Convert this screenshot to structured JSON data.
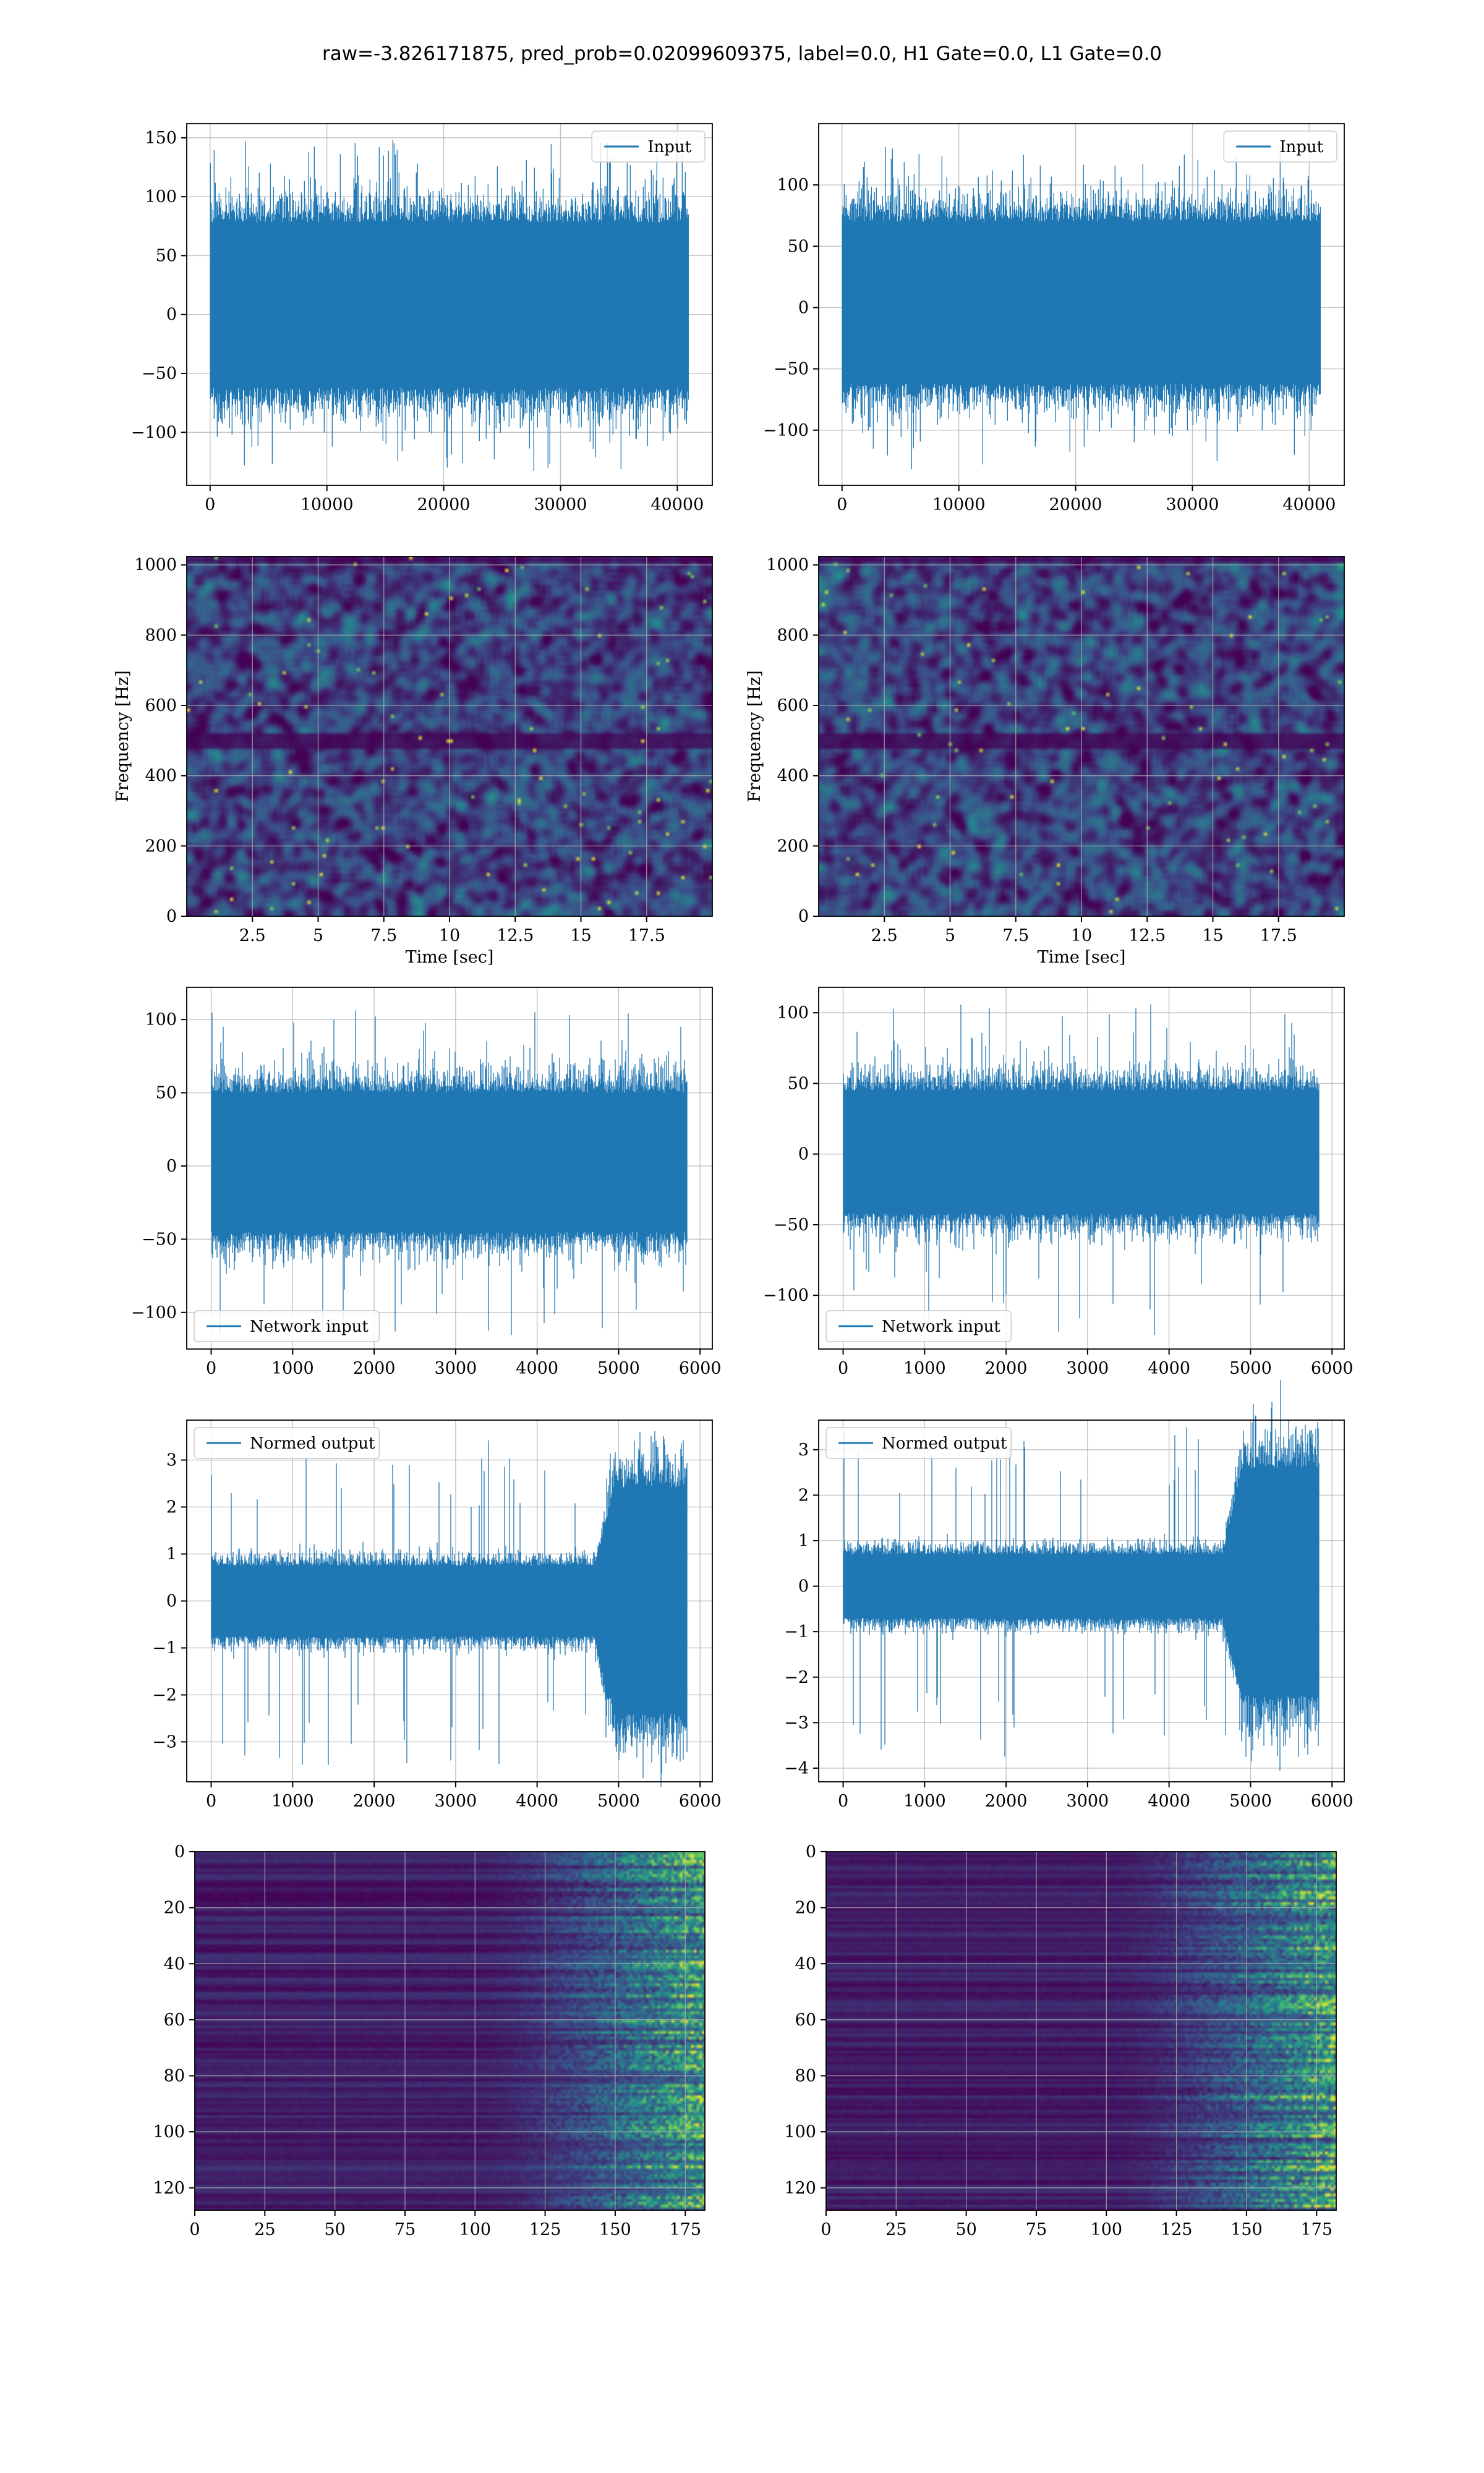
{
  "figure": {
    "suptitle": "raw=-3.826171875, pred_prob=0.02099609375, label=0.0, H1 Gate=0.0, L1 Gate=0.0"
  },
  "colors": {
    "line": "#1f77b4",
    "grid": "#b0b0b0",
    "spectrogram_background": "#440154",
    "heatmap_bright": "#fde725",
    "heatmap_mid": "#21918c"
  },
  "chart_data": [
    {
      "id": "h1-input",
      "type": "line",
      "title": "",
      "xlabel": "",
      "ylabel": "",
      "series": [
        {
          "name": "Input",
          "n_points": 40960,
          "x_range": [
            0,
            40960
          ],
          "y_band": [
            -62,
            78
          ],
          "envelope_max": 152,
          "envelope_min": -133
        }
      ],
      "xlim": [
        -2000,
        43000
      ],
      "ylim": [
        -145,
        162
      ],
      "xticks": [
        0,
        10000,
        20000,
        30000,
        40000
      ],
      "yticks": [
        -100,
        -50,
        0,
        50,
        100,
        150
      ],
      "legend": "upper right",
      "grid": true
    },
    {
      "id": "l1-input",
      "type": "line",
      "title": "",
      "xlabel": "",
      "ylabel": "",
      "series": [
        {
          "name": "Input",
          "n_points": 40960,
          "x_range": [
            0,
            40960
          ],
          "y_band": [
            -62,
            70
          ],
          "envelope_max": 132,
          "envelope_min": -132
        }
      ],
      "xlim": [
        -2000,
        43000
      ],
      "ylim": [
        -145,
        150
      ],
      "xticks": [
        0,
        10000,
        20000,
        30000,
        40000
      ],
      "yticks": [
        -100,
        -50,
        0,
        50,
        100
      ],
      "legend": "upper right",
      "grid": true
    },
    {
      "id": "h1-spectrogram",
      "type": "heatmap",
      "title": "",
      "xlabel": "Time [sec]",
      "ylabel": "Frequency [Hz]",
      "xlim": [
        0,
        20
      ],
      "ylim": [
        0,
        1024
      ],
      "xticks": [
        2.5,
        5.0,
        7.5,
        10.0,
        12.5,
        15.0,
        17.5
      ],
      "yticks": [
        0,
        200,
        400,
        600,
        800,
        1000
      ],
      "dark_band_hz": 500,
      "grid": true
    },
    {
      "id": "l1-spectrogram",
      "type": "heatmap",
      "title": "",
      "xlabel": "Time [sec]",
      "ylabel": "Frequency [Hz]",
      "xlim": [
        0,
        20
      ],
      "ylim": [
        0,
        1024
      ],
      "xticks": [
        2.5,
        5.0,
        7.5,
        10.0,
        12.5,
        15.0,
        17.5
      ],
      "yticks": [
        0,
        200,
        400,
        600,
        800,
        1000
      ],
      "dark_band_hz": 500,
      "grid": true
    },
    {
      "id": "h1-network-input",
      "type": "line",
      "title": "",
      "xlabel": "",
      "ylabel": "",
      "series": [
        {
          "name": "Network input",
          "n_points": 5840,
          "x_range": [
            0,
            5840
          ],
          "y_band": [
            -45,
            50
          ],
          "envelope_max": 107,
          "envelope_min": -118
        }
      ],
      "xlim": [
        -300,
        6150
      ],
      "ylim": [
        -125,
        122
      ],
      "xticks": [
        0,
        1000,
        2000,
        3000,
        4000,
        5000,
        6000
      ],
      "yticks": [
        -100,
        -50,
        0,
        50,
        100
      ],
      "legend": "lower left",
      "grid": true
    },
    {
      "id": "l1-network-input",
      "type": "line",
      "title": "",
      "xlabel": "",
      "ylabel": "",
      "series": [
        {
          "name": "Network input",
          "n_points": 5840,
          "x_range": [
            0,
            5840
          ],
          "y_band": [
            -42,
            45
          ],
          "envelope_max": 107,
          "envelope_min": -130
        }
      ],
      "xlim": [
        -300,
        6150
      ],
      "ylim": [
        -138,
        118
      ],
      "xticks": [
        0,
        1000,
        2000,
        3000,
        4000,
        5000,
        6000
      ],
      "yticks": [
        -100,
        -50,
        0,
        50,
        100
      ],
      "legend": "lower left",
      "grid": true
    },
    {
      "id": "h1-normed-output",
      "type": "line",
      "title": "",
      "xlabel": "",
      "ylabel": "",
      "series": [
        {
          "name": "Normed output",
          "n_points": 5840,
          "x_range": [
            0,
            5840
          ],
          "y_band": [
            -0.75,
            0.75
          ],
          "burst_start_x": 4700,
          "burst_band": [
            -2.4,
            2.4
          ],
          "envelope_max": 3.5,
          "envelope_min": -3.5
        }
      ],
      "xlim": [
        -300,
        6150
      ],
      "ylim": [
        -3.85,
        3.85
      ],
      "xticks": [
        0,
        1000,
        2000,
        3000,
        4000,
        5000,
        6000
      ],
      "yticks": [
        -3,
        -2,
        -1,
        0,
        1,
        2,
        3
      ],
      "legend": "upper left",
      "grid": true
    },
    {
      "id": "l1-normed-output",
      "type": "line",
      "title": "",
      "xlabel": "",
      "ylabel": "",
      "series": [
        {
          "name": "Normed output",
          "n_points": 5840,
          "x_range": [
            0,
            5840
          ],
          "y_band": [
            -0.7,
            0.7
          ],
          "burst_start_x": 4650,
          "burst_band": [
            -2.4,
            2.6
          ],
          "envelope_max": 3.5,
          "envelope_min": -3.8
        }
      ],
      "xlim": [
        -300,
        6150
      ],
      "ylim": [
        -4.3,
        3.65
      ],
      "xticks": [
        0,
        1000,
        2000,
        3000,
        4000,
        5000,
        6000
      ],
      "yticks": [
        -4,
        -3,
        -2,
        -1,
        0,
        1,
        2,
        3
      ],
      "legend": "upper left",
      "grid": true
    },
    {
      "id": "h1-feature-map",
      "type": "heatmap",
      "title": "",
      "xlabel": "",
      "ylabel": "",
      "rows": 128,
      "cols": 182,
      "xlim": [
        0,
        182
      ],
      "ylim": [
        128,
        0
      ],
      "y_inverted": true,
      "xticks": [
        0,
        25,
        50,
        75,
        100,
        125,
        150,
        175
      ],
      "yticks": [
        0,
        20,
        40,
        60,
        80,
        100,
        120
      ],
      "activity_onset_col": 100,
      "grid": true
    },
    {
      "id": "l1-feature-map",
      "type": "heatmap",
      "title": "",
      "xlabel": "",
      "ylabel": "",
      "rows": 128,
      "cols": 182,
      "xlim": [
        0,
        182
      ],
      "ylim": [
        128,
        0
      ],
      "y_inverted": true,
      "xticks": [
        0,
        25,
        50,
        75,
        100,
        125,
        150,
        175
      ],
      "yticks": [
        0,
        20,
        40,
        60,
        80,
        100,
        120
      ],
      "activity_onset_col": 100,
      "grid": true
    }
  ]
}
